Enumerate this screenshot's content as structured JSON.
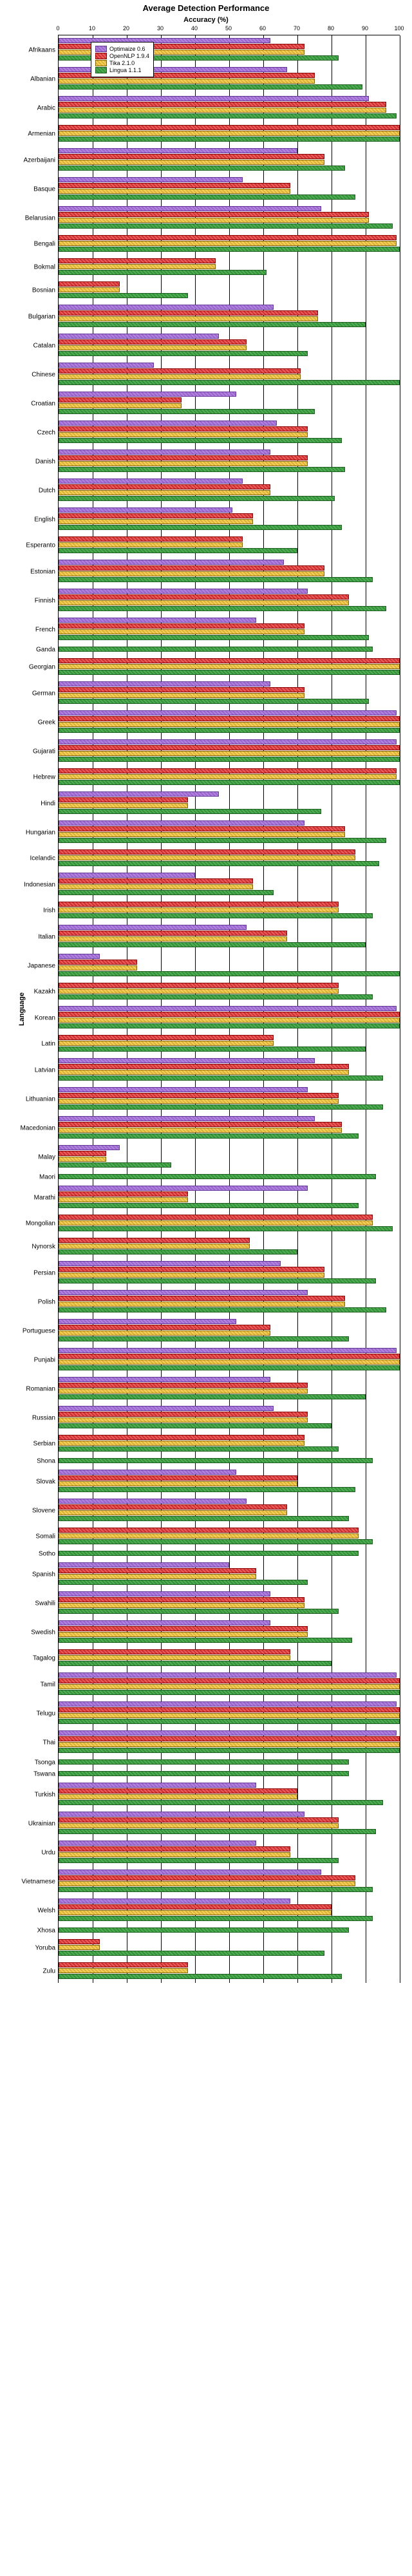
{
  "title": "Average Detection Performance",
  "xlabel": "Accuracy (%)",
  "ylabel": "Language",
  "xlim": [
    0,
    100
  ],
  "xtick_step": 10,
  "series": [
    {
      "name": "Optimaize 0.6",
      "class": "c0"
    },
    {
      "name": "OpenNLP 1.9.4",
      "class": "c1"
    },
    {
      "name": "Tika 2.1.0",
      "class": "c2"
    },
    {
      "name": "Lingua 1.1.1",
      "class": "c3"
    }
  ],
  "languages": [
    {
      "n": "Afrikaans",
      "v": [
        62,
        72,
        72,
        82
      ]
    },
    {
      "n": "Albanian",
      "v": [
        67,
        75,
        75,
        89
      ]
    },
    {
      "n": "Arabic",
      "v": [
        91,
        96,
        96,
        99
      ]
    },
    {
      "n": "Armenian",
      "v": [
        null,
        100,
        100,
        100
      ]
    },
    {
      "n": "Azerbaijani",
      "v": [
        70,
        78,
        78,
        84
      ]
    },
    {
      "n": "Basque",
      "v": [
        54,
        68,
        68,
        87
      ]
    },
    {
      "n": "Belarusian",
      "v": [
        77,
        91,
        91,
        98
      ]
    },
    {
      "n": "Bengali",
      "v": [
        null,
        99,
        99,
        100
      ]
    },
    {
      "n": "Bokmal",
      "v": [
        null,
        46,
        46,
        61
      ]
    },
    {
      "n": "Bosnian",
      "v": [
        null,
        18,
        18,
        38
      ]
    },
    {
      "n": "Bulgarian",
      "v": [
        63,
        76,
        76,
        90
      ]
    },
    {
      "n": "Catalan",
      "v": [
        47,
        55,
        55,
        73
      ]
    },
    {
      "n": "Chinese",
      "v": [
        28,
        71,
        71,
        100
      ]
    },
    {
      "n": "Croatian",
      "v": [
        52,
        36,
        36,
        75
      ]
    },
    {
      "n": "Czech",
      "v": [
        64,
        73,
        73,
        83
      ]
    },
    {
      "n": "Danish",
      "v": [
        62,
        73,
        73,
        84
      ]
    },
    {
      "n": "Dutch",
      "v": [
        54,
        62,
        62,
        81
      ]
    },
    {
      "n": "English",
      "v": [
        51,
        57,
        57,
        83
      ]
    },
    {
      "n": "Esperanto",
      "v": [
        null,
        54,
        54,
        70
      ]
    },
    {
      "n": "Estonian",
      "v": [
        66,
        78,
        78,
        92
      ]
    },
    {
      "n": "Finnish",
      "v": [
        73,
        85,
        85,
        96
      ]
    },
    {
      "n": "French",
      "v": [
        58,
        72,
        72,
        91
      ]
    },
    {
      "n": "Ganda",
      "v": [
        null,
        null,
        null,
        92
      ]
    },
    {
      "n": "Georgian",
      "v": [
        null,
        100,
        100,
        100
      ]
    },
    {
      "n": "German",
      "v": [
        62,
        72,
        72,
        91
      ]
    },
    {
      "n": "Greek",
      "v": [
        99,
        100,
        100,
        100
      ]
    },
    {
      "n": "Gujarati",
      "v": [
        99,
        100,
        100,
        100
      ]
    },
    {
      "n": "Hebrew",
      "v": [
        null,
        99,
        99,
        100
      ]
    },
    {
      "n": "Hindi",
      "v": [
        47,
        38,
        38,
        77
      ]
    },
    {
      "n": "Hungarian",
      "v": [
        72,
        84,
        84,
        96
      ]
    },
    {
      "n": "Icelandic",
      "v": [
        null,
        87,
        87,
        94
      ]
    },
    {
      "n": "Indonesian",
      "v": [
        40,
        57,
        57,
        63
      ]
    },
    {
      "n": "Irish",
      "v": [
        null,
        82,
        82,
        92
      ]
    },
    {
      "n": "Italian",
      "v": [
        55,
        67,
        67,
        90
      ]
    },
    {
      "n": "Japanese",
      "v": [
        12,
        23,
        23,
        100
      ]
    },
    {
      "n": "Kazakh",
      "v": [
        null,
        82,
        82,
        92
      ]
    },
    {
      "n": "Korean",
      "v": [
        99,
        100,
        100,
        100
      ]
    },
    {
      "n": "Latin",
      "v": [
        null,
        63,
        63,
        90
      ]
    },
    {
      "n": "Latvian",
      "v": [
        75,
        85,
        85,
        95
      ]
    },
    {
      "n": "Lithuanian",
      "v": [
        73,
        82,
        82,
        95
      ]
    },
    {
      "n": "Macedonian",
      "v": [
        75,
        83,
        83,
        88
      ]
    },
    {
      "n": "Malay",
      "v": [
        18,
        14,
        14,
        33
      ]
    },
    {
      "n": "Maori",
      "v": [
        null,
        null,
        null,
        93
      ]
    },
    {
      "n": "Marathi",
      "v": [
        73,
        38,
        38,
        88
      ]
    },
    {
      "n": "Mongolian",
      "v": [
        null,
        92,
        92,
        98
      ]
    },
    {
      "n": "Nynorsk",
      "v": [
        null,
        56,
        56,
        70
      ]
    },
    {
      "n": "Persian",
      "v": [
        65,
        78,
        78,
        93
      ]
    },
    {
      "n": "Polish",
      "v": [
        73,
        84,
        84,
        96
      ]
    },
    {
      "n": "Portuguese",
      "v": [
        52,
        62,
        62,
        85
      ]
    },
    {
      "n": "Punjabi",
      "v": [
        99,
        100,
        100,
        100
      ]
    },
    {
      "n": "Romanian",
      "v": [
        62,
        73,
        73,
        90
      ]
    },
    {
      "n": "Russian",
      "v": [
        63,
        73,
        73,
        80
      ]
    },
    {
      "n": "Serbian",
      "v": [
        null,
        72,
        72,
        82
      ]
    },
    {
      "n": "Shona",
      "v": [
        null,
        null,
        null,
        92
      ]
    },
    {
      "n": "Slovak",
      "v": [
        52,
        70,
        70,
        87
      ]
    },
    {
      "n": "Slovene",
      "v": [
        55,
        67,
        67,
        85
      ]
    },
    {
      "n": "Somali",
      "v": [
        null,
        88,
        88,
        92
      ]
    },
    {
      "n": "Sotho",
      "v": [
        null,
        null,
        null,
        88
      ]
    },
    {
      "n": "Spanish",
      "v": [
        50,
        58,
        58,
        73
      ]
    },
    {
      "n": "Swahili",
      "v": [
        62,
        72,
        72,
        82
      ]
    },
    {
      "n": "Swedish",
      "v": [
        62,
        73,
        73,
        86
      ]
    },
    {
      "n": "Tagalog",
      "v": [
        null,
        68,
        68,
        80
      ]
    },
    {
      "n": "Tamil",
      "v": [
        99,
        100,
        100,
        100
      ]
    },
    {
      "n": "Telugu",
      "v": [
        99,
        100,
        100,
        100
      ]
    },
    {
      "n": "Thai",
      "v": [
        99,
        100,
        100,
        100
      ]
    },
    {
      "n": "Tsonga",
      "v": [
        null,
        null,
        null,
        85
      ]
    },
    {
      "n": "Tswana",
      "v": [
        null,
        null,
        null,
        85
      ]
    },
    {
      "n": "Turkish",
      "v": [
        58,
        70,
        70,
        95
      ]
    },
    {
      "n": "Ukrainian",
      "v": [
        72,
        82,
        82,
        93
      ]
    },
    {
      "n": "Urdu",
      "v": [
        58,
        68,
        68,
        82
      ]
    },
    {
      "n": "Vietnamese",
      "v": [
        77,
        87,
        87,
        92
      ]
    },
    {
      "n": "Welsh",
      "v": [
        68,
        80,
        80,
        92
      ]
    },
    {
      "n": "Xhosa",
      "v": [
        null,
        null,
        null,
        85
      ]
    },
    {
      "n": "Yoruba",
      "v": [
        null,
        12,
        12,
        78
      ]
    },
    {
      "n": "Zulu",
      "v": [
        null,
        38,
        38,
        83
      ]
    }
  ]
}
